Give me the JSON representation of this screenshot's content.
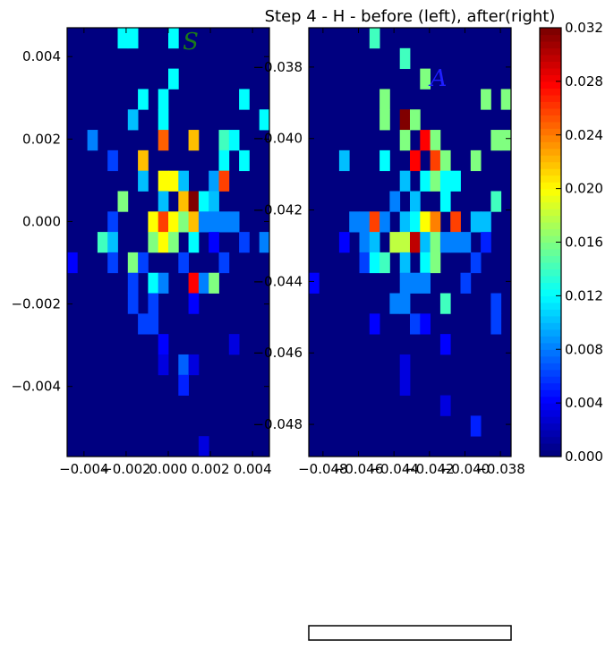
{
  "figure": {
    "title": "Step 4 - H - before (left), after(right)"
  },
  "colors": {
    "background": "#ffffff",
    "axis": "#000000"
  },
  "chart_data": [
    {
      "type": "heatmap",
      "panel_label": "S",
      "label_color": "#1a7a1a",
      "xlim": [
        -0.0048,
        0.0048
      ],
      "ylim": [
        -0.0057,
        0.0047
      ],
      "x_ticks": [
        -0.004,
        -0.002,
        0.0,
        0.002,
        0.004
      ],
      "x_tick_labels": [
        "−0.004",
        "−0.002",
        "0.000",
        "0.002",
        "0.004"
      ],
      "y_ticks": [
        0.004,
        0.002,
        0.0,
        -0.002,
        -0.004
      ],
      "y_tick_labels": [
        "0.004",
        "0.002",
        "0.000",
        "−0.002",
        "−0.004"
      ],
      "grid": {
        "cols": 20,
        "rows": 21
      },
      "cells": [
        [
          5,
          0,
          0.012
        ],
        [
          6,
          0,
          0.012
        ],
        [
          10,
          0,
          0.012
        ],
        [
          10,
          2,
          0.012
        ],
        [
          7,
          3,
          0.012
        ],
        [
          9,
          3,
          0.012
        ],
        [
          17,
          3,
          0.012
        ],
        [
          6,
          4,
          0.01
        ],
        [
          9,
          4,
          0.012
        ],
        [
          19,
          4,
          0.012
        ],
        [
          2,
          5,
          0.008
        ],
        [
          9,
          5,
          0.025
        ],
        [
          12,
          5,
          0.022
        ],
        [
          15,
          5,
          0.014
        ],
        [
          16,
          5,
          0.012
        ],
        [
          4,
          6,
          0.006
        ],
        [
          7,
          6,
          0.022
        ],
        [
          15,
          6,
          0.012
        ],
        [
          17,
          6,
          0.012
        ],
        [
          7,
          7,
          0.01
        ],
        [
          9,
          7,
          0.02
        ],
        [
          10,
          7,
          0.02
        ],
        [
          11,
          7,
          0.01
        ],
        [
          14,
          7,
          0.009
        ],
        [
          15,
          7,
          0.026
        ],
        [
          5,
          8,
          0.016
        ],
        [
          9,
          8,
          0.01
        ],
        [
          11,
          8,
          0.022
        ],
        [
          12,
          8,
          0.032
        ],
        [
          13,
          8,
          0.012
        ],
        [
          14,
          8,
          0.01
        ],
        [
          4,
          9,
          0.006
        ],
        [
          8,
          9,
          0.02
        ],
        [
          9,
          9,
          0.026
        ],
        [
          10,
          9,
          0.02
        ],
        [
          11,
          9,
          0.016
        ],
        [
          12,
          9,
          0.022
        ],
        [
          13,
          9,
          0.008
        ],
        [
          14,
          9,
          0.008
        ],
        [
          15,
          9,
          0.008
        ],
        [
          16,
          9,
          0.008
        ],
        [
          3,
          10,
          0.014
        ],
        [
          4,
          10,
          0.01
        ],
        [
          8,
          10,
          0.016
        ],
        [
          9,
          10,
          0.02
        ],
        [
          10,
          10,
          0.016
        ],
        [
          12,
          10,
          0.012
        ],
        [
          14,
          10,
          0.004
        ],
        [
          17,
          10,
          0.006
        ],
        [
          19,
          10,
          0.008
        ],
        [
          0,
          11,
          0.004
        ],
        [
          4,
          11,
          0.006
        ],
        [
          6,
          11,
          0.016
        ],
        [
          7,
          11,
          0.006
        ],
        [
          11,
          11,
          0.006
        ],
        [
          15,
          11,
          0.006
        ],
        [
          6,
          12,
          0.006
        ],
        [
          8,
          12,
          0.012
        ],
        [
          9,
          12,
          0.008
        ],
        [
          12,
          12,
          0.028
        ],
        [
          13,
          12,
          0.008
        ],
        [
          14,
          12,
          0.016
        ],
        [
          6,
          13,
          0.006
        ],
        [
          8,
          13,
          0.006
        ],
        [
          12,
          13,
          0.004
        ],
        [
          7,
          14,
          0.006
        ],
        [
          8,
          14,
          0.006
        ],
        [
          9,
          15,
          0.004
        ],
        [
          16,
          15,
          0.003
        ],
        [
          9,
          16,
          0.003
        ],
        [
          11,
          16,
          0.007
        ],
        [
          12,
          16,
          0.003
        ],
        [
          11,
          17,
          0.005
        ],
        [
          13,
          20,
          0.003
        ]
      ]
    },
    {
      "type": "heatmap",
      "panel_label": "A",
      "label_color": "#1f1fff",
      "xlim": [
        -0.0488,
        -0.0374
      ],
      "ylim": [
        -0.0489,
        -0.0369
      ],
      "x_ticks": [
        -0.048,
        -0.046,
        -0.044,
        -0.042,
        -0.04,
        -0.038
      ],
      "x_tick_labels": [
        "−0.048",
        "−0.046",
        "−0.044",
        "−0.042",
        "−0.040",
        "−0.038"
      ],
      "y_ticks": [
        -0.038,
        -0.04,
        -0.042,
        -0.044,
        -0.046,
        -0.048
      ],
      "y_tick_labels": [
        "−0.038",
        "−0.040",
        "−0.042",
        "−0.044",
        "−0.046",
        "−0.048"
      ],
      "grid": {
        "cols": 20,
        "rows": 21
      },
      "cells": [
        [
          6,
          0,
          0.014
        ],
        [
          9,
          1,
          0.014
        ],
        [
          11,
          2,
          0.016
        ],
        [
          7,
          3,
          0.016
        ],
        [
          17,
          3,
          0.016
        ],
        [
          19,
          3,
          0.016
        ],
        [
          7,
          4,
          0.016
        ],
        [
          9,
          4,
          0.032
        ],
        [
          10,
          4,
          0.016
        ],
        [
          9,
          5,
          0.016
        ],
        [
          11,
          5,
          0.028
        ],
        [
          12,
          5,
          0.016
        ],
        [
          18,
          5,
          0.016
        ],
        [
          19,
          5,
          0.016
        ],
        [
          3,
          6,
          0.01
        ],
        [
          7,
          6,
          0.012
        ],
        [
          10,
          6,
          0.028
        ],
        [
          12,
          6,
          0.026
        ],
        [
          13,
          6,
          0.016
        ],
        [
          16,
          6,
          0.016
        ],
        [
          9,
          7,
          0.01
        ],
        [
          11,
          7,
          0.012
        ],
        [
          12,
          7,
          0.016
        ],
        [
          13,
          7,
          0.012
        ],
        [
          14,
          7,
          0.012
        ],
        [
          8,
          8,
          0.008
        ],
        [
          10,
          8,
          0.01
        ],
        [
          13,
          8,
          0.012
        ],
        [
          18,
          8,
          0.014
        ],
        [
          4,
          9,
          0.008
        ],
        [
          5,
          9,
          0.008
        ],
        [
          6,
          9,
          0.026
        ],
        [
          7,
          9,
          0.008
        ],
        [
          9,
          9,
          0.01
        ],
        [
          10,
          9,
          0.012
        ],
        [
          11,
          9,
          0.02
        ],
        [
          12,
          9,
          0.024
        ],
        [
          14,
          9,
          0.026
        ],
        [
          16,
          9,
          0.01
        ],
        [
          17,
          9,
          0.01
        ],
        [
          3,
          10,
          0.004
        ],
        [
          5,
          10,
          0.008
        ],
        [
          6,
          10,
          0.01
        ],
        [
          8,
          10,
          0.018
        ],
        [
          9,
          10,
          0.018
        ],
        [
          10,
          10,
          0.03
        ],
        [
          11,
          10,
          0.01
        ],
        [
          12,
          10,
          0.016
        ],
        [
          13,
          10,
          0.008
        ],
        [
          14,
          10,
          0.008
        ],
        [
          15,
          10,
          0.008
        ],
        [
          17,
          10,
          0.005
        ],
        [
          5,
          11,
          0.006
        ],
        [
          6,
          11,
          0.012
        ],
        [
          7,
          11,
          0.014
        ],
        [
          9,
          11,
          0.01
        ],
        [
          11,
          11,
          0.012
        ],
        [
          12,
          11,
          0.016
        ],
        [
          16,
          11,
          0.006
        ],
        [
          0,
          12,
          0.004
        ],
        [
          9,
          12,
          0.008
        ],
        [
          10,
          12,
          0.008
        ],
        [
          11,
          12,
          0.008
        ],
        [
          15,
          12,
          0.006
        ],
        [
          8,
          13,
          0.008
        ],
        [
          9,
          13,
          0.008
        ],
        [
          13,
          13,
          0.014
        ],
        [
          18,
          13,
          0.006
        ],
        [
          6,
          14,
          0.004
        ],
        [
          10,
          14,
          0.006
        ],
        [
          11,
          14,
          0.004
        ],
        [
          18,
          14,
          0.006
        ],
        [
          13,
          15,
          0.004
        ],
        [
          9,
          16,
          0.003
        ],
        [
          9,
          17,
          0.003
        ],
        [
          13,
          18,
          0.003
        ],
        [
          16,
          19,
          0.005
        ]
      ]
    }
  ],
  "colorbar": {
    "ticks": [
      0.0,
      0.004,
      0.008,
      0.012,
      0.016,
      0.02,
      0.024,
      0.028,
      0.032
    ],
    "tick_labels": [
      "0.000",
      "0.004",
      "0.008",
      "0.012",
      "0.016",
      "0.020",
      "0.024",
      "0.028",
      "0.032"
    ],
    "range": [
      0,
      0.032
    ],
    "colormap": "jet"
  },
  "progress_box": {
    "fill": 0
  }
}
